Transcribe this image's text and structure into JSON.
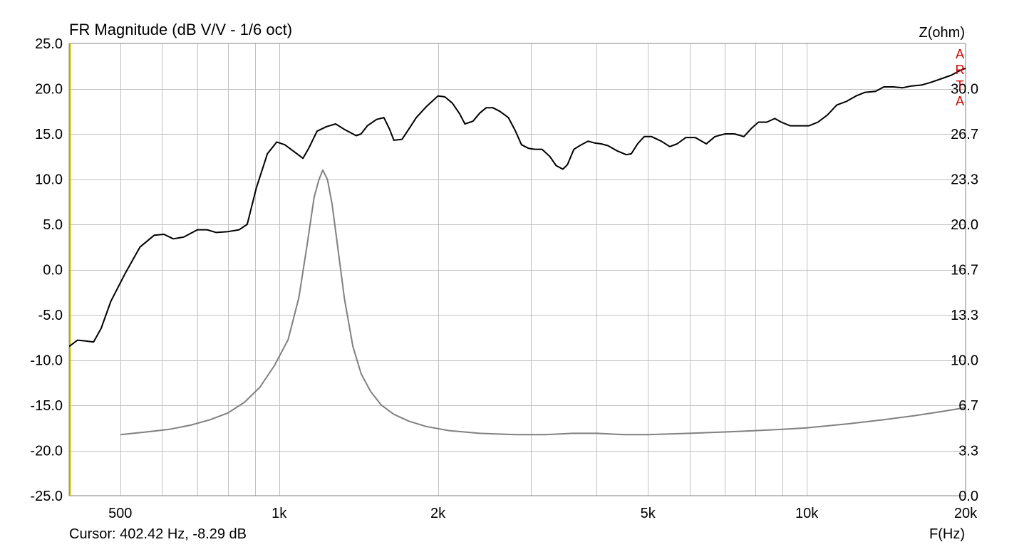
{
  "chart_data": {
    "type": "line",
    "title": "FR Magnitude (dB V/V - 1/6 oct)",
    "xlabel": "F(Hz)",
    "ylabel_right": "Z(ohm)",
    "watermark": [
      "A",
      "R",
      "T",
      "A"
    ],
    "cursor_text": "Cursor: 402.42 Hz, -8.29 dB",
    "x_scale": "log",
    "xlim": [
      400,
      20000
    ],
    "ylim_left": [
      -25,
      25
    ],
    "ylim_right": [
      0,
      33.333
    ],
    "grid": true,
    "legend": "none",
    "x_ticks": [
      {
        "value": 500,
        "label": "500"
      },
      {
        "value": 1000,
        "label": "1k"
      },
      {
        "value": 2000,
        "label": "2k"
      },
      {
        "value": 5000,
        "label": "5k"
      },
      {
        "value": 10000,
        "label": "10k"
      },
      {
        "value": 20000,
        "label": "20k"
      }
    ],
    "y_ticks_left": [
      {
        "value": 25,
        "label": "25.0"
      },
      {
        "value": 20,
        "label": "20.0"
      },
      {
        "value": 15,
        "label": "15.0"
      },
      {
        "value": 10,
        "label": "10.0"
      },
      {
        "value": 5,
        "label": "5.0"
      },
      {
        "value": 0,
        "label": "0.0"
      },
      {
        "value": -5,
        "label": "-5.0"
      },
      {
        "value": -10,
        "label": "-10.0"
      },
      {
        "value": -15,
        "label": "-15.0"
      },
      {
        "value": -20,
        "label": "-20.0"
      },
      {
        "value": -25,
        "label": "-25.0"
      }
    ],
    "y_ticks_right": [
      {
        "value": 30.0,
        "label": "30.0"
      },
      {
        "value": 26.667,
        "label": "26.7"
      },
      {
        "value": 23.333,
        "label": "23.3"
      },
      {
        "value": 20.0,
        "label": "20.0"
      },
      {
        "value": 16.667,
        "label": "16.7"
      },
      {
        "value": 13.333,
        "label": "13.3"
      },
      {
        "value": 10.0,
        "label": "10.0"
      },
      {
        "value": 6.667,
        "label": "6.7"
      },
      {
        "value": 3.333,
        "label": "3.3"
      },
      {
        "value": 0.0,
        "label": "0.0"
      }
    ],
    "colors": {
      "magnitude": "#000000",
      "impedance": "#808080",
      "grid": "#c0c0c0",
      "cursor": "#c8c800",
      "watermark": "#d40000"
    },
    "series": [
      {
        "axis": "left",
        "color": "#000000",
        "points": [
          [
            400,
            -8.5
          ],
          [
            415,
            -7.8
          ],
          [
            430,
            -7.9
          ],
          [
            445,
            -8.0
          ],
          [
            460,
            -6.5
          ],
          [
            480,
            -3.5
          ],
          [
            510,
            -0.5
          ],
          [
            545,
            2.5
          ],
          [
            580,
            3.8
          ],
          [
            605,
            3.9
          ],
          [
            630,
            3.4
          ],
          [
            660,
            3.6
          ],
          [
            700,
            4.4
          ],
          [
            730,
            4.4
          ],
          [
            760,
            4.1
          ],
          [
            800,
            4.2
          ],
          [
            840,
            4.4
          ],
          [
            870,
            5.0
          ],
          [
            905,
            9.0
          ],
          [
            950,
            12.8
          ],
          [
            990,
            14.1
          ],
          [
            1025,
            13.8
          ],
          [
            1070,
            13.0
          ],
          [
            1110,
            12.3
          ],
          [
            1140,
            13.5
          ],
          [
            1180,
            15.3
          ],
          [
            1230,
            15.8
          ],
          [
            1280,
            16.1
          ],
          [
            1330,
            15.5
          ],
          [
            1400,
            14.8
          ],
          [
            1430,
            15.0
          ],
          [
            1470,
            15.9
          ],
          [
            1530,
            16.6
          ],
          [
            1580,
            16.8
          ],
          [
            1620,
            15.5
          ],
          [
            1650,
            14.3
          ],
          [
            1710,
            14.4
          ],
          [
            1760,
            15.5
          ],
          [
            1820,
            16.8
          ],
          [
            1900,
            18.0
          ],
          [
            1950,
            18.6
          ],
          [
            2000,
            19.2
          ],
          [
            2060,
            19.1
          ],
          [
            2130,
            18.4
          ],
          [
            2200,
            17.2
          ],
          [
            2250,
            16.1
          ],
          [
            2330,
            16.4
          ],
          [
            2400,
            17.3
          ],
          [
            2470,
            17.9
          ],
          [
            2540,
            17.9
          ],
          [
            2620,
            17.5
          ],
          [
            2720,
            16.8
          ],
          [
            2800,
            15.4
          ],
          [
            2880,
            13.8
          ],
          [
            2970,
            13.4
          ],
          [
            3050,
            13.3
          ],
          [
            3150,
            13.3
          ],
          [
            3260,
            12.5
          ],
          [
            3350,
            11.5
          ],
          [
            3450,
            11.1
          ],
          [
            3520,
            11.6
          ],
          [
            3620,
            13.3
          ],
          [
            3740,
            13.8
          ],
          [
            3850,
            14.2
          ],
          [
            3960,
            14.0
          ],
          [
            4080,
            13.9
          ],
          [
            4200,
            13.7
          ],
          [
            4380,
            13.1
          ],
          [
            4550,
            12.7
          ],
          [
            4650,
            12.8
          ],
          [
            4780,
            13.9
          ],
          [
            4920,
            14.7
          ],
          [
            5080,
            14.7
          ],
          [
            5300,
            14.2
          ],
          [
            5500,
            13.6
          ],
          [
            5680,
            13.9
          ],
          [
            5900,
            14.6
          ],
          [
            6150,
            14.6
          ],
          [
            6450,
            13.9
          ],
          [
            6700,
            14.7
          ],
          [
            7000,
            15.0
          ],
          [
            7300,
            15.0
          ],
          [
            7600,
            14.7
          ],
          [
            7850,
            15.6
          ],
          [
            8100,
            16.3
          ],
          [
            8400,
            16.3
          ],
          [
            8700,
            16.7
          ],
          [
            8950,
            16.3
          ],
          [
            9300,
            15.9
          ],
          [
            9700,
            15.9
          ],
          [
            10100,
            15.9
          ],
          [
            10500,
            16.3
          ],
          [
            10950,
            17.1
          ],
          [
            11400,
            18.2
          ],
          [
            11900,
            18.6
          ],
          [
            12400,
            19.2
          ],
          [
            12900,
            19.6
          ],
          [
            13500,
            19.7
          ],
          [
            14000,
            20.2
          ],
          [
            14600,
            20.2
          ],
          [
            15200,
            20.1
          ],
          [
            15800,
            20.3
          ],
          [
            16500,
            20.4
          ],
          [
            17200,
            20.7
          ],
          [
            18000,
            21.1
          ],
          [
            18800,
            21.5
          ],
          [
            19500,
            22.0
          ],
          [
            20300,
            22.4
          ],
          [
            21100,
            22.6
          ],
          [
            21900,
            22.5
          ],
          [
            22700,
            22.0
          ],
          [
            23300,
            21.6
          ],
          [
            23800,
            21.3
          ]
        ]
      },
      {
        "axis": "right",
        "color": "#808080",
        "points": [
          [
            500,
            4.5
          ],
          [
            560,
            4.7
          ],
          [
            620,
            4.9
          ],
          [
            680,
            5.2
          ],
          [
            740,
            5.6
          ],
          [
            800,
            6.1
          ],
          [
            860,
            6.9
          ],
          [
            920,
            8.0
          ],
          [
            980,
            9.6
          ],
          [
            1040,
            11.5
          ],
          [
            1090,
            14.6
          ],
          [
            1130,
            18.5
          ],
          [
            1165,
            22.0
          ],
          [
            1190,
            23.3
          ],
          [
            1210,
            24.0
          ],
          [
            1235,
            23.3
          ],
          [
            1260,
            21.5
          ],
          [
            1290,
            18.5
          ],
          [
            1330,
            14.5
          ],
          [
            1380,
            11.0
          ],
          [
            1430,
            9.0
          ],
          [
            1490,
            7.7
          ],
          [
            1560,
            6.7
          ],
          [
            1650,
            6.0
          ],
          [
            1760,
            5.5
          ],
          [
            1900,
            5.1
          ],
          [
            2100,
            4.8
          ],
          [
            2400,
            4.6
          ],
          [
            2800,
            4.5
          ],
          [
            3200,
            4.5
          ],
          [
            3600,
            4.6
          ],
          [
            4000,
            4.6
          ],
          [
            4500,
            4.5
          ],
          [
            5000,
            4.5
          ],
          [
            6000,
            4.6
          ],
          [
            7000,
            4.7
          ],
          [
            8000,
            4.8
          ],
          [
            9000,
            4.9
          ],
          [
            10000,
            5.0
          ],
          [
            12000,
            5.3
          ],
          [
            14000,
            5.6
          ],
          [
            16000,
            5.9
          ],
          [
            18000,
            6.2
          ],
          [
            20000,
            6.5
          ],
          [
            23800,
            6.9
          ]
        ]
      }
    ]
  }
}
